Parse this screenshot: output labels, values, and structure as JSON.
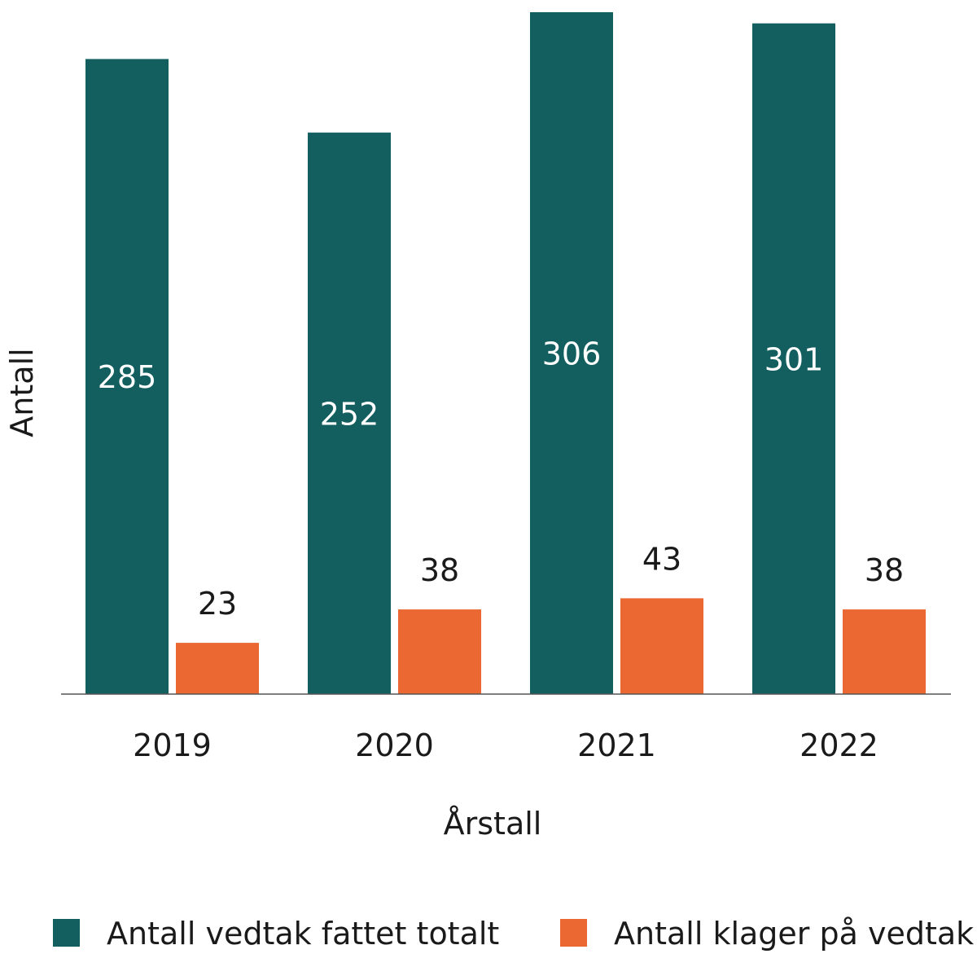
{
  "chart_data": {
    "type": "bar",
    "title": "",
    "xlabel": "Årstall",
    "ylabel": "Antall",
    "categories": [
      "2019",
      "2020",
      "2021",
      "2022"
    ],
    "series": [
      {
        "name": "Antall vedtak fattet totalt",
        "values": [
          285,
          252,
          306,
          301
        ],
        "color": "#135e5e"
      },
      {
        "name": "Antall klager på vedtak",
        "values": [
          23,
          38,
          43,
          38
        ],
        "color": "#eb6833"
      }
    ],
    "ylim": [
      0,
      306
    ],
    "grid": false,
    "legend": "bottom"
  }
}
